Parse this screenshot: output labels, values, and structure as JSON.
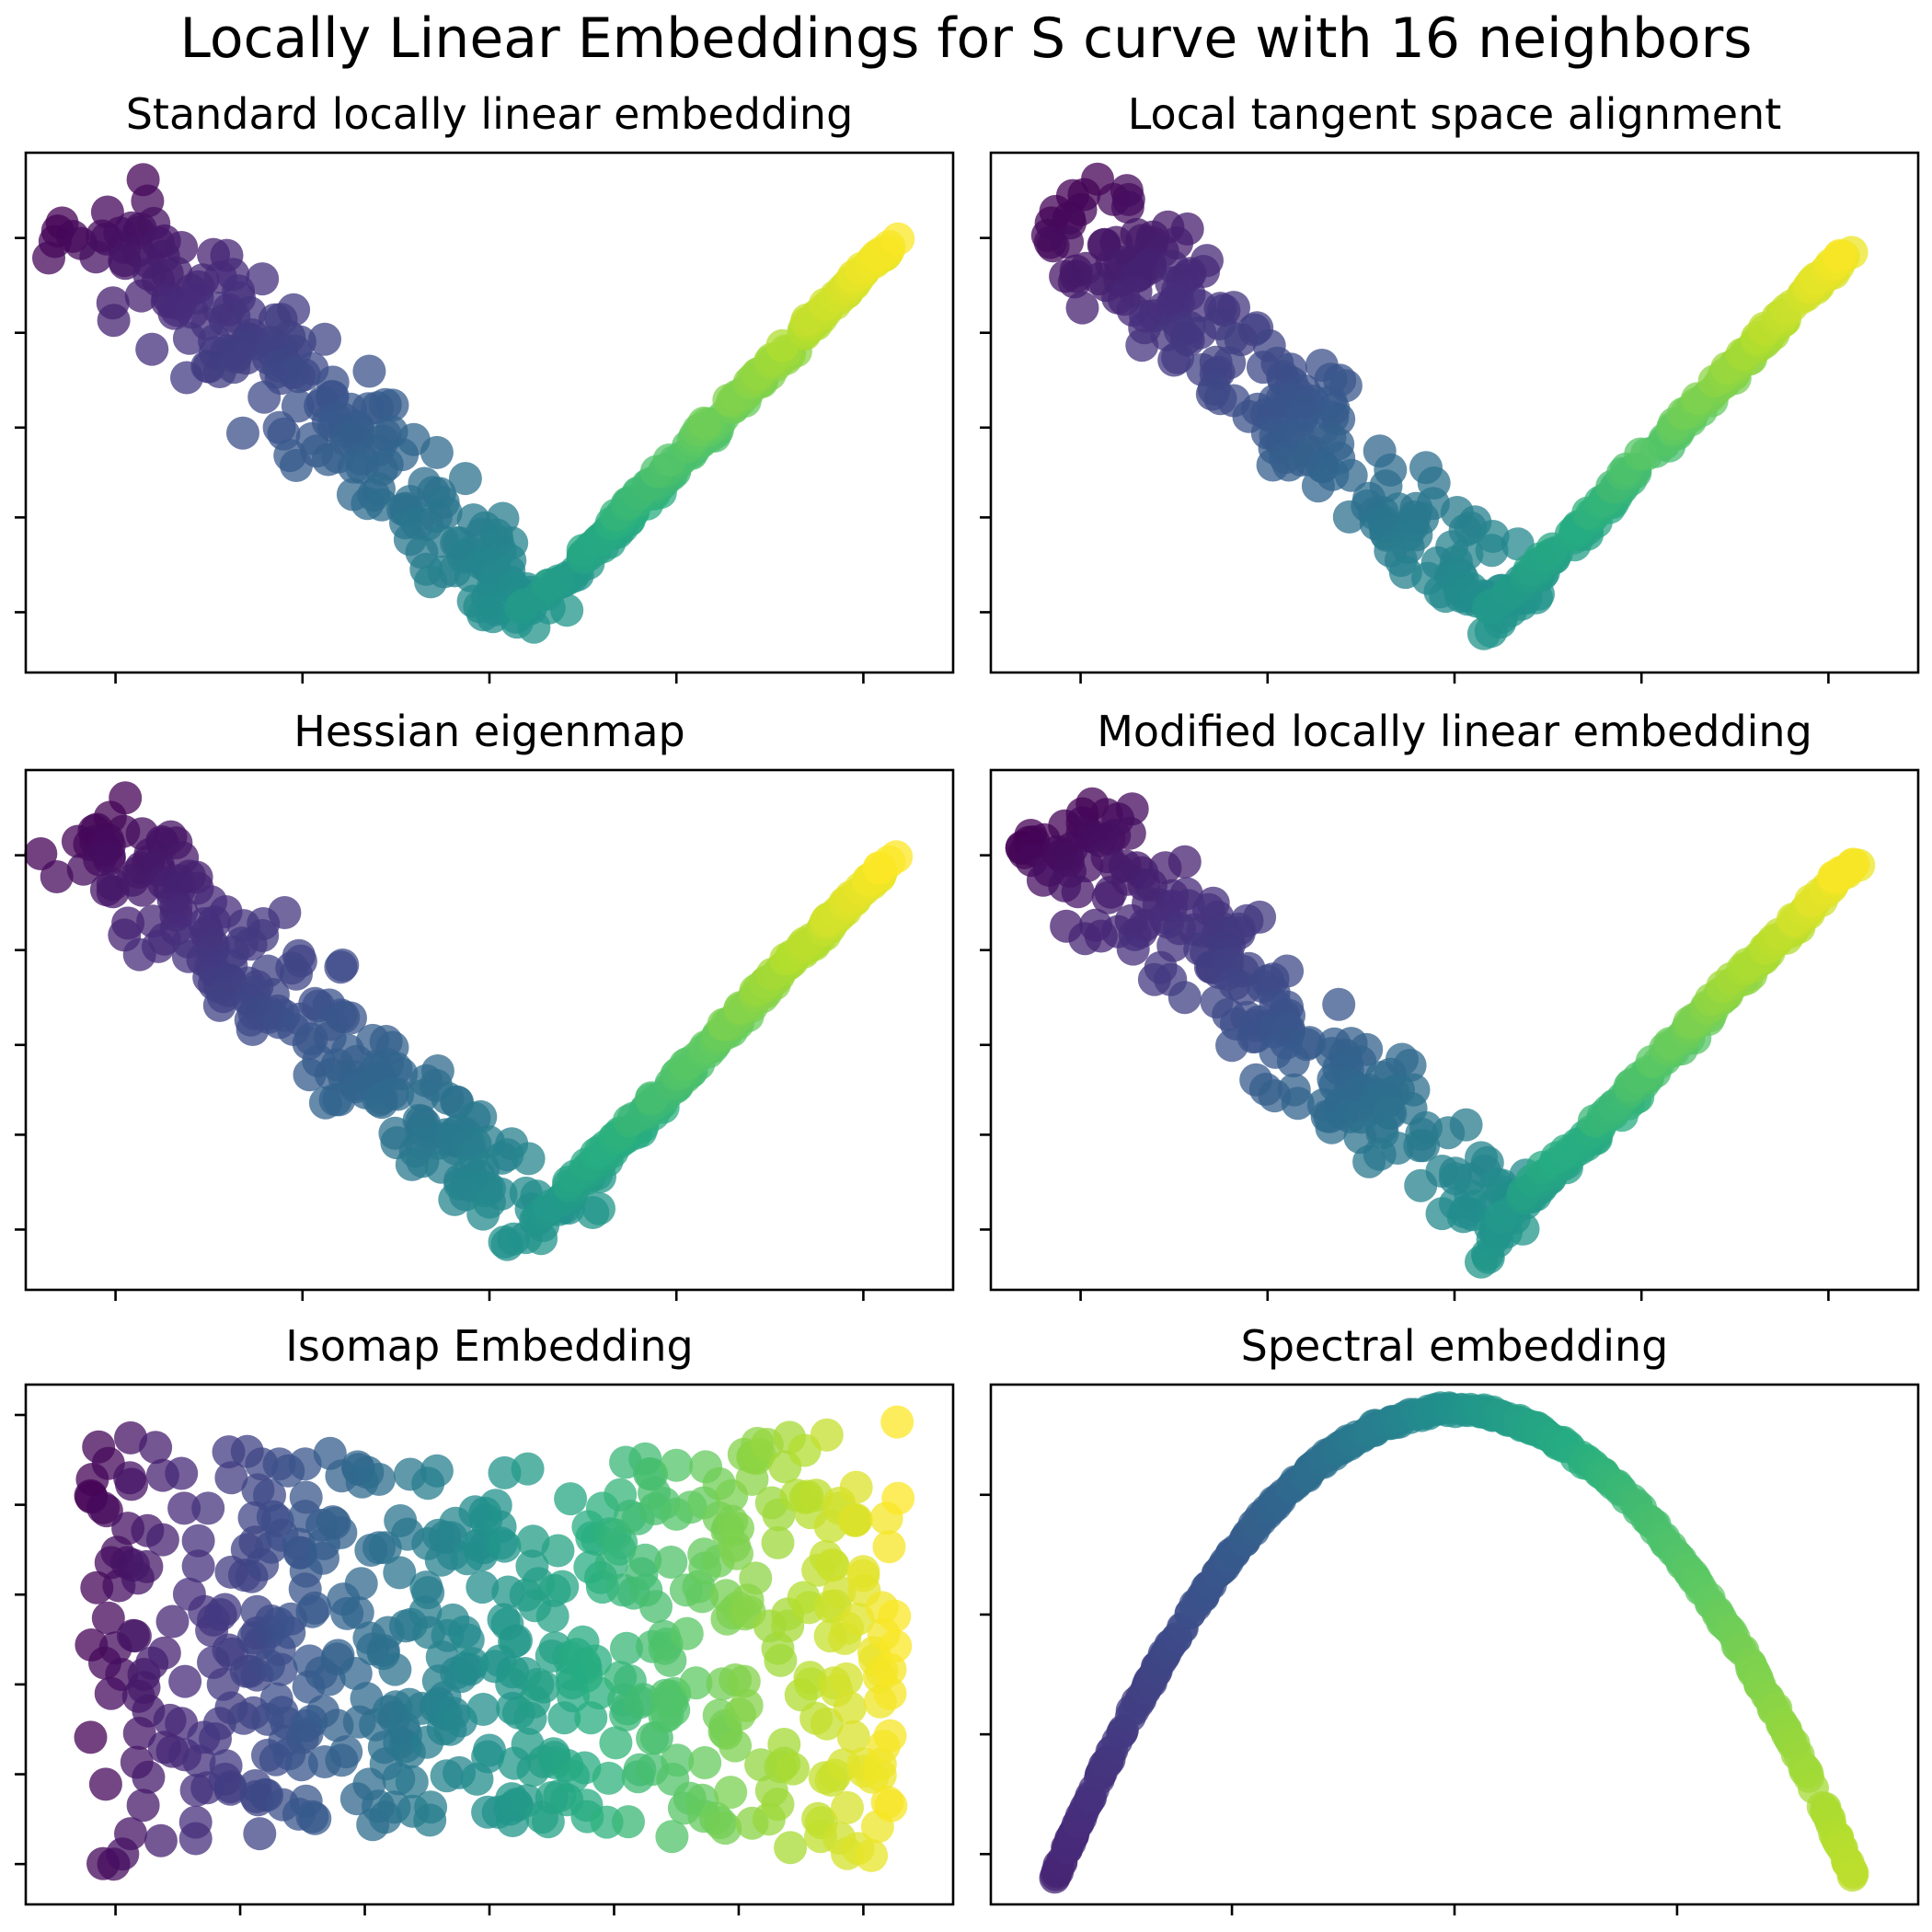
{
  "figure": {
    "suptitle": "Locally Linear Embeddings for S curve with 16 neighbors"
  },
  "colormap": [
    "#440154",
    "#472d7b",
    "#3b528b",
    "#2c728e",
    "#21918c",
    "#28ae80",
    "#5ec962",
    "#addc30",
    "#fde725"
  ],
  "chart_data": [
    {
      "type": "scatter",
      "title": "Standard locally linear embedding",
      "shape": "v",
      "xlim": [
        0,
        1
      ],
      "ylim": [
        0,
        1
      ],
      "xticks": [
        0.08,
        0.29,
        0.5,
        0.71,
        0.92
      ],
      "yticks": [
        0.1,
        0.29,
        0.47,
        0.66,
        0.85
      ],
      "tick_labels_shown": false,
      "legend": "none",
      "grid": false,
      "points": []
    },
    {
      "type": "scatter",
      "title": "Local tangent space alignment",
      "shape": "v",
      "xlim": [
        0,
        1
      ],
      "ylim": [
        0,
        1
      ],
      "xticks": [
        0.08,
        0.29,
        0.5,
        0.71,
        0.92
      ],
      "yticks": [
        0.1,
        0.29,
        0.47,
        0.66,
        0.85
      ],
      "tick_labels_shown": false,
      "legend": "none",
      "grid": false,
      "points": []
    },
    {
      "type": "scatter",
      "title": "Hessian eigenmap",
      "shape": "v",
      "xlim": [
        0,
        1
      ],
      "ylim": [
        0,
        1
      ],
      "xticks": [
        0.08,
        0.29,
        0.5,
        0.71,
        0.92
      ],
      "yticks": [
        0.1,
        0.29,
        0.47,
        0.66,
        0.85
      ],
      "tick_labels_shown": false,
      "legend": "none",
      "grid": false,
      "points": []
    },
    {
      "type": "scatter",
      "title": "Modified locally linear embedding",
      "shape": "v",
      "xlim": [
        0,
        1
      ],
      "ylim": [
        0,
        1
      ],
      "xticks": [
        0.08,
        0.29,
        0.5,
        0.71,
        0.92
      ],
      "yticks": [
        0.1,
        0.29,
        0.47,
        0.66,
        0.85
      ],
      "tick_labels_shown": false,
      "legend": "none",
      "grid": false,
      "points": []
    },
    {
      "type": "scatter",
      "title": "Isomap Embedding",
      "shape": "band",
      "xlim": [
        0,
        1
      ],
      "ylim": [
        0,
        1
      ],
      "xticks": [
        0.08,
        0.22,
        0.36,
        0.5,
        0.64,
        0.78,
        0.92
      ],
      "yticks": [
        0.06,
        0.24,
        0.42,
        0.6,
        0.78,
        0.96
      ],
      "tick_labels_shown": false,
      "legend": "none",
      "grid": false,
      "points": []
    },
    {
      "type": "scatter",
      "title": "Spectral embedding",
      "shape": "arc",
      "xlim": [
        0,
        1
      ],
      "ylim": [
        0,
        1
      ],
      "xticks": [
        0.25,
        0.5,
        0.75
      ],
      "yticks": [
        0.08,
        0.32,
        0.56,
        0.8
      ],
      "tick_labels_shown": false,
      "legend": "none",
      "grid": false,
      "points": []
    }
  ]
}
